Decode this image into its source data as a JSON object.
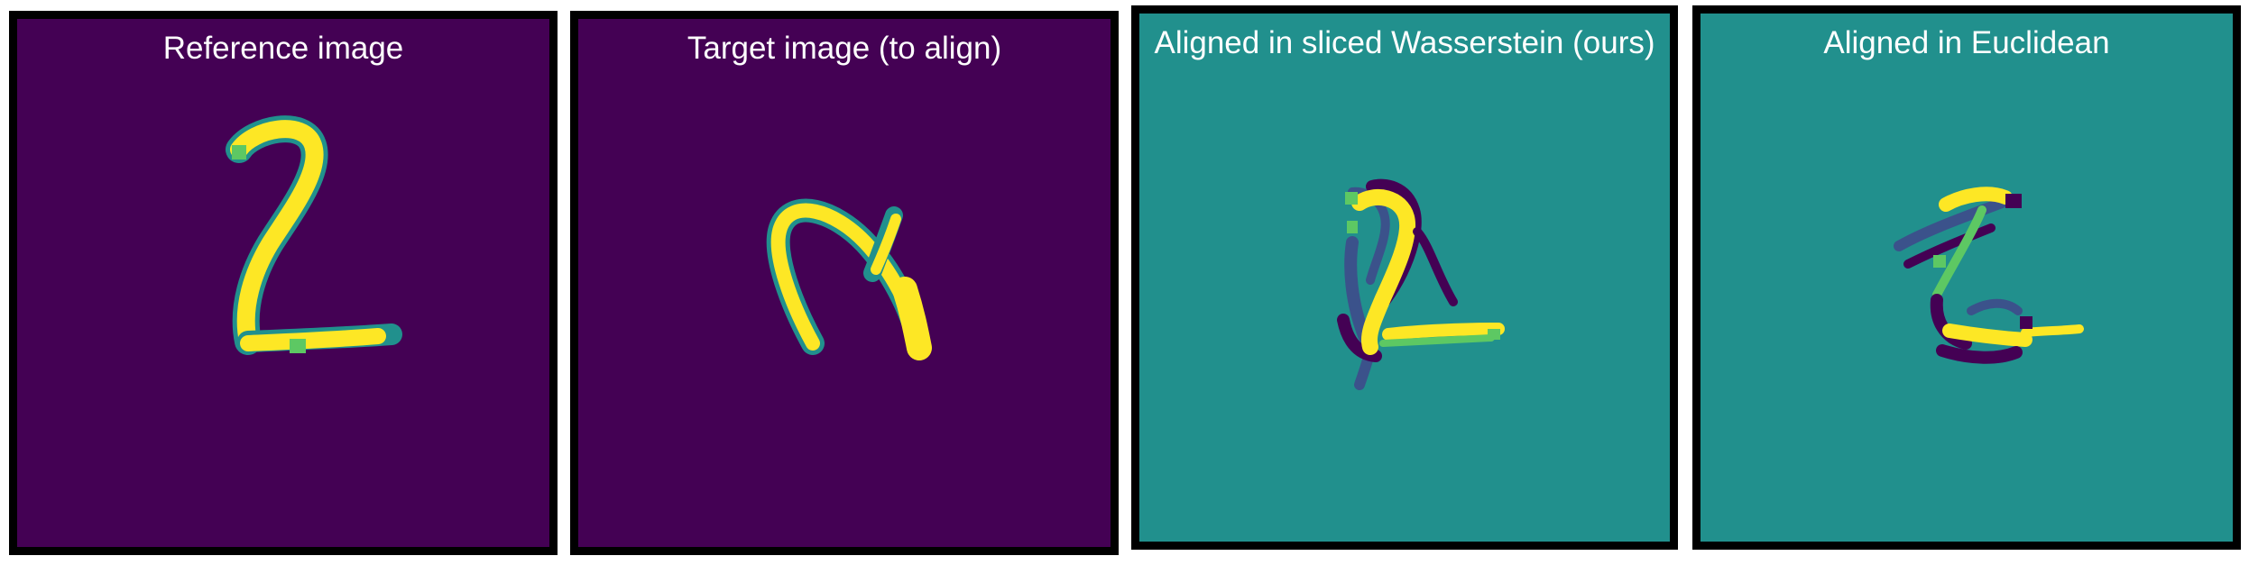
{
  "figure": {
    "panels": [
      {
        "title": "Reference image",
        "background": "#440154"
      },
      {
        "title": "Target image (to align)",
        "background": "#440154"
      },
      {
        "title": "Aligned in sliced Wasserstein (ours)",
        "background": "#21908d"
      },
      {
        "title": "Aligned in Euclidean",
        "background": "#21908d"
      }
    ]
  },
  "colors": {
    "viridis_dark": "#440154",
    "viridis_darkblue": "#3b528b",
    "viridis_teal": "#21908d",
    "viridis_tealmid": "#2a9d8f",
    "viridis_green": "#5dc863",
    "viridis_yellow": "#fde725"
  }
}
